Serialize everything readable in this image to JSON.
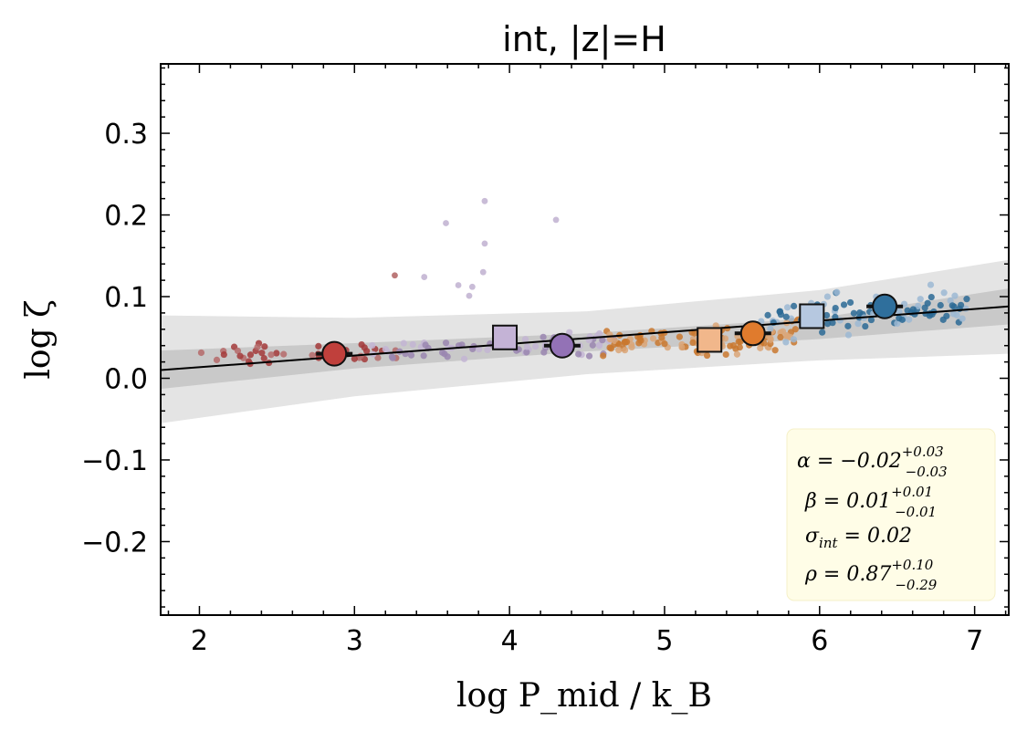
{
  "chart_data": {
    "type": "scatter",
    "title": "int, |z|=H",
    "xlabel": "log P_mid / k_B",
    "ylabel": "log ζ",
    "xlim": [
      1.75,
      7.22
    ],
    "ylim": [
      -0.29,
      0.385
    ],
    "xticks": [
      2,
      3,
      4,
      5,
      6,
      7
    ],
    "xtick_labels": [
      "2",
      "3",
      "4",
      "5",
      "6",
      "7"
    ],
    "yticks": [
      -0.2,
      -0.1,
      0.0,
      0.1,
      0.2,
      0.3
    ],
    "ytick_labels": [
      "−0.2",
      "−0.1",
      "0.0",
      "0.1",
      "0.2",
      "0.3"
    ],
    "grid": false,
    "fit_line": {
      "x": [
        1.75,
        7.22
      ],
      "y": [
        0.01,
        0.088
      ]
    },
    "band_inner": {
      "x": [
        1.75,
        3.0,
        4.5,
        6.0,
        7.22
      ],
      "upper": [
        0.034,
        0.043,
        0.055,
        0.074,
        0.11
      ],
      "lower": [
        -0.013,
        0.012,
        0.033,
        0.048,
        0.066
      ]
    },
    "band_outer": {
      "x": [
        1.75,
        3.0,
        4.5,
        6.0,
        7.22
      ],
      "upper": [
        0.077,
        0.074,
        0.082,
        0.108,
        0.145
      ],
      "lower": [
        -0.055,
        -0.022,
        0.005,
        0.022,
        0.03
      ]
    },
    "clusters": [
      {
        "name": "red",
        "color": "#a33a3a",
        "light": "#b56a6a",
        "xrange": [
          2.0,
          3.3
        ],
        "ycenter": 0.03,
        "yspread": 0.012,
        "n": 45,
        "outliers": [
          [
            3.26,
            0.126
          ]
        ],
        "mean_circle": {
          "x": 2.87,
          "y": 0.03,
          "color": "#c0403c"
        }
      },
      {
        "name": "purple",
        "color": "#9a86b0",
        "light": "#c3b5d3",
        "xrange": [
          3.1,
          4.7
        ],
        "ycenter": 0.038,
        "yspread": 0.015,
        "n": 70,
        "outliers": [
          [
            3.84,
            0.217
          ],
          [
            4.3,
            0.194
          ],
          [
            3.59,
            0.19
          ],
          [
            3.84,
            0.165
          ],
          [
            3.45,
            0.124
          ],
          [
            3.83,
            0.13
          ],
          [
            3.67,
            0.114
          ],
          [
            3.76,
            0.112
          ],
          [
            3.74,
            0.101
          ]
        ],
        "mean_circle": {
          "x": 4.34,
          "y": 0.04,
          "color": "#9372b6"
        },
        "median_square": {
          "x": 3.97,
          "y": 0.05,
          "color": "#c4b3d6"
        }
      },
      {
        "name": "orange",
        "color": "#c9782f",
        "light": "#dba678",
        "xrange": [
          4.6,
          5.9
        ],
        "ycenter": 0.048,
        "yspread": 0.018,
        "n": 110,
        "outliers": [],
        "mean_circle": {
          "x": 5.57,
          "y": 0.055,
          "color": "#e07b2d"
        },
        "median_square": {
          "x": 5.29,
          "y": 0.047,
          "color": "#f1b78b"
        }
      },
      {
        "name": "blue",
        "color": "#2c6a95",
        "light": "#9cb8d3",
        "xrange": [
          5.6,
          6.95
        ],
        "ycenter": 0.08,
        "yspread": 0.025,
        "n": 95,
        "outliers": [],
        "mean_circle": {
          "x": 6.42,
          "y": 0.088,
          "color": "#2f6f9c"
        },
        "median_square": {
          "x": 5.95,
          "y": 0.076,
          "color": "#b6c8e0"
        }
      }
    ],
    "stats": {
      "alpha": {
        "label": "α = −0.02",
        "sup": "+0.03",
        "sub": "−0.03"
      },
      "beta": {
        "label": "β = 0.01",
        "sup": "+0.01",
        "sub": "−0.01"
      },
      "sigma": {
        "label": "σ",
        "sub": "int",
        "rest": " = 0.02"
      },
      "rho": {
        "label": "ρ = 0.87",
        "sup": "+0.10",
        "sub": "−0.29"
      }
    },
    "stats_box_color": "#fffde7",
    "legend_position": "bottom-right"
  }
}
